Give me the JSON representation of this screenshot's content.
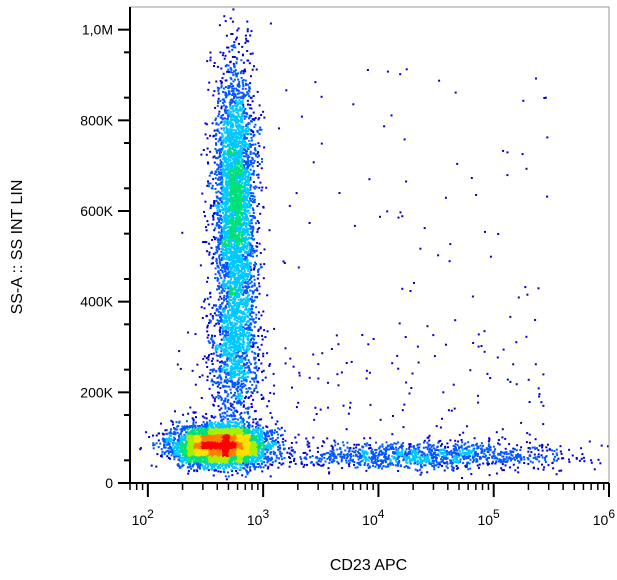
{
  "chart_data": {
    "type": "scatter",
    "title": "",
    "xlabel": "CD23 APC",
    "ylabel": "SS-A :: SS INT LIN",
    "xscale": "log",
    "xlim": [
      70,
      1000000
    ],
    "ylim": [
      0,
      1050000
    ],
    "x_major_ticks": [
      {
        "base": "10",
        "exp": "2",
        "value": 100
      },
      {
        "base": "10",
        "exp": "3",
        "value": 1000
      },
      {
        "base": "10",
        "exp": "4",
        "value": 10000
      },
      {
        "base": "10",
        "exp": "5",
        "value": 100000
      },
      {
        "base": "10",
        "exp": "6",
        "value": 1000000
      }
    ],
    "y_ticks": [
      {
        "label": "0",
        "value": 0
      },
      {
        "label": "200K",
        "value": 200000
      },
      {
        "label": "400K",
        "value": 400000
      },
      {
        "label": "600K",
        "value": 600000
      },
      {
        "label": "800K",
        "value": 800000
      },
      {
        "label": "1,0M",
        "value": 1000000
      }
    ],
    "grid": false,
    "legend": "none",
    "color_scale": [
      "#0000cc",
      "#0055ff",
      "#00c8ff",
      "#00e07a",
      "#a8f000",
      "#ffe000",
      "#ff8000",
      "#ff0000"
    ],
    "populations": [
      {
        "x_center": 420,
        "y_center": 85000,
        "x_spread_decades": 0.2,
        "y_spread": 22000,
        "density": "high"
      },
      {
        "x_center": 560,
        "y_center": 620000,
        "x_spread_decades": 0.09,
        "y_spread": 150000,
        "density": "medium"
      },
      {
        "x_center": 550,
        "y_center": 300000,
        "x_spread_decades": 0.11,
        "y_spread": 90000,
        "density": "low"
      },
      {
        "x_center": 25000,
        "y_center": 62000,
        "x_spread_decades": 0.6,
        "y_spread": 15000,
        "density": "low"
      }
    ]
  }
}
